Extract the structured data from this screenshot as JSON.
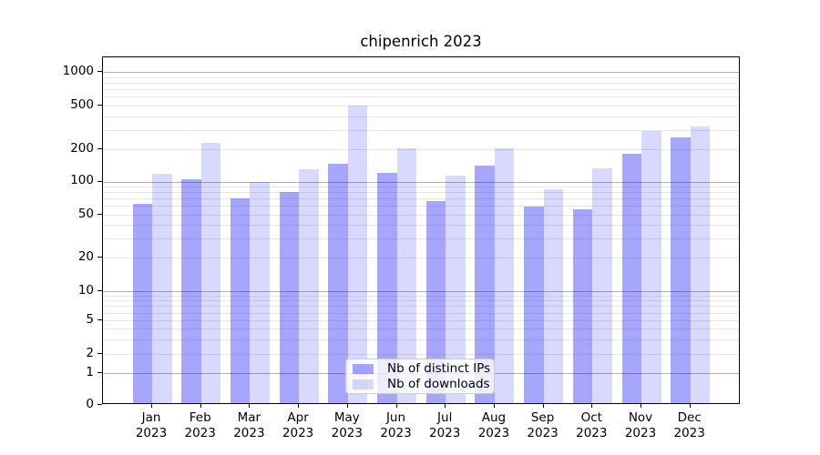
{
  "chart_data": {
    "type": "bar",
    "title": "chipenrich 2023",
    "categories": [
      "Jan 2023",
      "Feb 2023",
      "Mar 2023",
      "Apr 2023",
      "May 2023",
      "Jun 2023",
      "Jul 2023",
      "Aug 2023",
      "Sep 2023",
      "Oct 2023",
      "Nov 2023",
      "Dec 2023"
    ],
    "series": [
      {
        "name": "Nb of distinct IPs",
        "apparent_color": "#A6A6FA",
        "fill": "rgba(0,0,255,0.35)",
        "values": [
          63,
          105,
          70,
          81,
          147,
          120,
          67,
          141,
          59,
          56,
          183,
          256
        ]
      },
      {
        "name": "Nb of downloads",
        "apparent_color": "#D9D9FA",
        "fill": "rgba(0,0,255,0.15)",
        "values": [
          117,
          230,
          100,
          130,
          500,
          202,
          114,
          205,
          85,
          132,
          291,
          320
        ]
      }
    ],
    "xlabel": "",
    "ylabel": "",
    "y_ticks": [
      0,
      1,
      2,
      5,
      10,
      20,
      50,
      100,
      200,
      500,
      1000
    ],
    "yscale": "symlog",
    "ylim": [
      0,
      1300
    ],
    "grid": "horizontal major and minor gridlines",
    "legend_position": "inside lower-center",
    "major_grid_color": "#b0b0b0",
    "minor_grid_color": "#e6e6e6",
    "axis_color": "#000000"
  }
}
